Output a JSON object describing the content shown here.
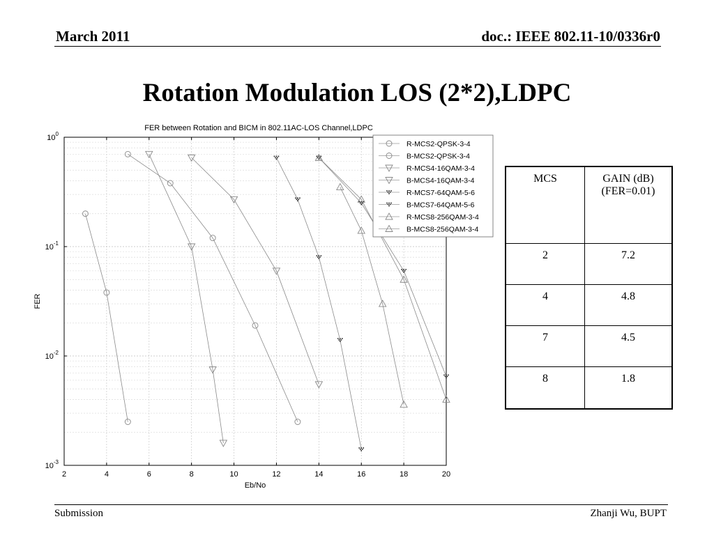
{
  "header": {
    "date": "March 2011",
    "doc": "doc.: IEEE 802.11-10/0336r0"
  },
  "slide_title": "Rotation Modulation LOS (2*2),LDPC",
  "footer": {
    "left": "Submission",
    "right": "Zhanji Wu, BUPT"
  },
  "gain_table": {
    "headers": [
      "MCS",
      "GAIN (dB)\n(FER=0.01)"
    ],
    "rows": [
      [
        "2",
        "7.2"
      ],
      [
        "4",
        "4.8"
      ],
      [
        "7",
        "4.5"
      ],
      [
        "8",
        "1.8"
      ]
    ]
  },
  "chart_data": {
    "type": "line",
    "title": "FER between Rotation and BICM in 802.11AC-LOS Channel,LDPC",
    "xlabel": "Eb/No",
    "ylabel": "FER",
    "xlim": [
      2,
      20
    ],
    "ylim": [
      0.001,
      1
    ],
    "yscale": "log",
    "xticks": [
      2,
      4,
      6,
      8,
      10,
      12,
      14,
      16,
      18,
      20
    ],
    "yticks": [
      {
        "base": "10",
        "exp": "0"
      },
      {
        "base": "10",
        "exp": "-1"
      },
      {
        "base": "10",
        "exp": "-2"
      },
      {
        "base": "10",
        "exp": "-3"
      }
    ],
    "grid": true,
    "legend_position": "top-right",
    "series": [
      {
        "name": "R-MCS2-QPSK-3-4",
        "marker": "circle",
        "x": [
          3,
          4,
          5
        ],
        "y": [
          0.2,
          0.038,
          0.0025
        ]
      },
      {
        "name": "B-MCS2-QPSK-3-4",
        "marker": "circle",
        "x": [
          5,
          7,
          9,
          11,
          13
        ],
        "y": [
          0.7,
          0.38,
          0.12,
          0.019,
          0.0025
        ]
      },
      {
        "name": "R-MCS4-16QAM-3-4",
        "marker": "triangle-down",
        "x": [
          6,
          8,
          9,
          9.5
        ],
        "y": [
          0.7,
          0.1,
          0.0075,
          0.0016
        ]
      },
      {
        "name": "B-MCS4-16QAM-3-4",
        "marker": "triangle-down",
        "x": [
          8,
          10,
          12,
          14
        ],
        "y": [
          0.65,
          0.27,
          0.06,
          0.0055
        ]
      },
      {
        "name": "R-MCS7-64QAM-5-6",
        "marker": "dot-cluster",
        "x": [
          12,
          13,
          14,
          15,
          16
        ],
        "y": [
          0.65,
          0.27,
          0.08,
          0.014,
          0.0014
        ]
      },
      {
        "name": "B-MCS7-64QAM-5-6",
        "marker": "dot-cluster",
        "x": [
          14,
          16,
          18,
          20
        ],
        "y": [
          0.65,
          0.25,
          0.06,
          0.0065
        ]
      },
      {
        "name": "R-MCS8-256QAM-3-4",
        "marker": "triangle-up",
        "x": [
          15,
          16,
          17,
          18
        ],
        "y": [
          0.35,
          0.14,
          0.03,
          0.0036
        ]
      },
      {
        "name": "B-MCS8-256QAM-3-4",
        "marker": "triangle-up",
        "x": [
          14,
          16,
          18,
          20
        ],
        "y": [
          0.65,
          0.27,
          0.05,
          0.004
        ]
      }
    ]
  }
}
